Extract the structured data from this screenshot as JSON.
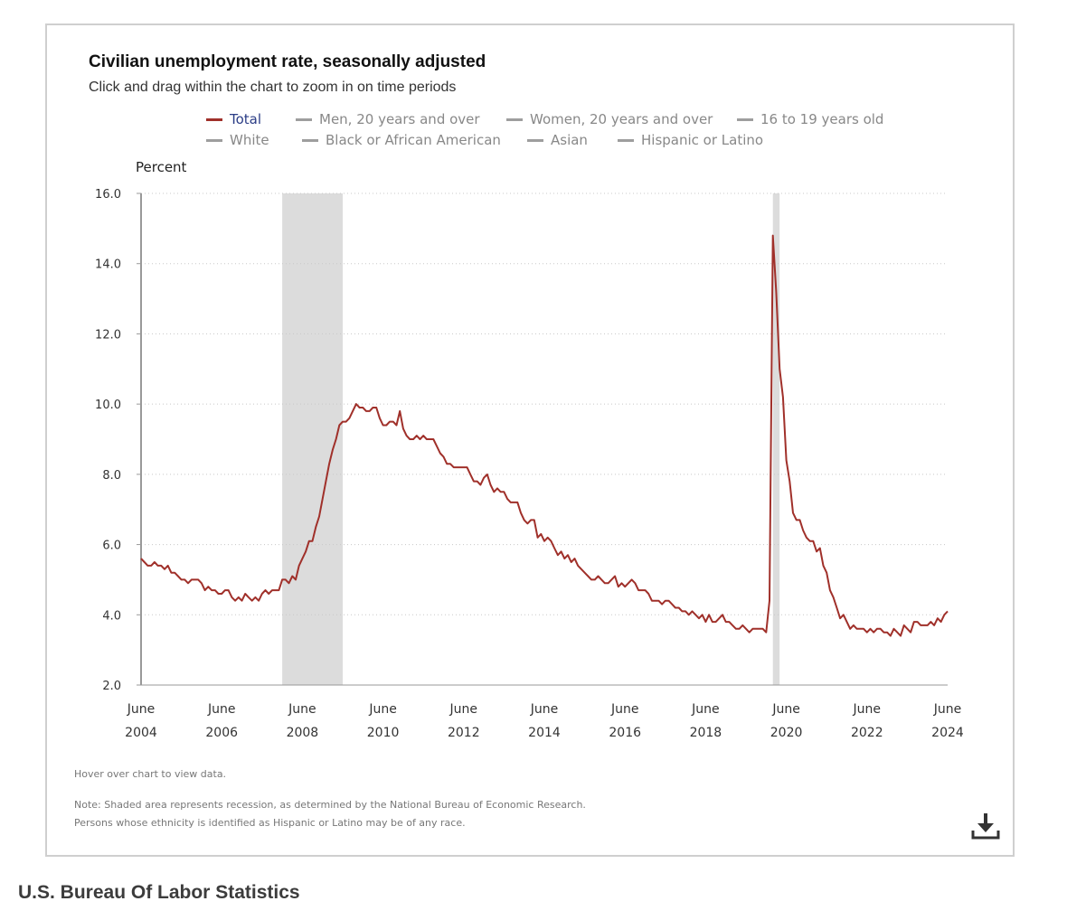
{
  "chart": {
    "title": "Civilian unemployment rate, seasonally adjusted",
    "subtitle": "Click and drag within the chart to zoom in on time periods",
    "legend": [
      {
        "label": "Total",
        "active": true,
        "color": "#a0302a"
      },
      {
        "label": "Men, 20 years and over",
        "active": false,
        "color": "#9e9e9e"
      },
      {
        "label": "Women, 20 years and over",
        "active": false,
        "color": "#9e9e9e"
      },
      {
        "label": "16 to 19 years old",
        "active": false,
        "color": "#9e9e9e"
      },
      {
        "label": "White",
        "active": false,
        "color": "#9e9e9e"
      },
      {
        "label": "Black or African American",
        "active": false,
        "color": "#9e9e9e"
      },
      {
        "label": "Asian",
        "active": false,
        "color": "#9e9e9e"
      },
      {
        "label": "Hispanic or Latino",
        "active": false,
        "color": "#9e9e9e"
      }
    ],
    "hover_note": "Hover over chart to view data.",
    "note_line1": "Note: Shaded area represents recession, as determined by the National Bureau of Economic Research.",
    "note_line2": "Persons whose ethnicity is identified as Hispanic or Latino may be of any race.",
    "download_icon": "download-icon"
  },
  "source": "U.S. Bureau Of Labor Statistics",
  "chart_data": {
    "type": "line",
    "title": "Civilian unemployment rate, seasonally adjusted",
    "ylabel": "Percent",
    "xlabel": "",
    "ylim": [
      2.0,
      16.0
    ],
    "yticks": [
      "2.0",
      "4.0",
      "6.0",
      "8.0",
      "10.0",
      "12.0",
      "14.0",
      "16.0"
    ],
    "xticks": [
      {
        "month": "June",
        "year": "2004"
      },
      {
        "month": "June",
        "year": "2006"
      },
      {
        "month": "June",
        "year": "2008"
      },
      {
        "month": "June",
        "year": "2010"
      },
      {
        "month": "June",
        "year": "2012"
      },
      {
        "month": "June",
        "year": "2014"
      },
      {
        "month": "June",
        "year": "2016"
      },
      {
        "month": "June",
        "year": "2018"
      },
      {
        "month": "June",
        "year": "2020"
      },
      {
        "month": "June",
        "year": "2022"
      },
      {
        "month": "June",
        "year": "2024"
      }
    ],
    "grid": "horizontal dotted",
    "line_color": "#a0302a",
    "recession_color": "#dcdcdc",
    "recessions": [
      {
        "start": "2007-12",
        "end": "2009-06"
      },
      {
        "start": "2020-02",
        "end": "2020-04"
      }
    ],
    "series": [
      {
        "name": "Total",
        "start": "2004-06",
        "frequency": "monthly",
        "values": [
          5.6,
          5.5,
          5.4,
          5.4,
          5.5,
          5.4,
          5.4,
          5.3,
          5.4,
          5.2,
          5.2,
          5.1,
          5.0,
          5.0,
          4.9,
          5.0,
          5.0,
          5.0,
          4.9,
          4.7,
          4.8,
          4.7,
          4.7,
          4.6,
          4.6,
          4.7,
          4.7,
          4.5,
          4.4,
          4.5,
          4.4,
          4.6,
          4.5,
          4.4,
          4.5,
          4.4,
          4.6,
          4.7,
          4.6,
          4.7,
          4.7,
          4.7,
          5.0,
          5.0,
          4.9,
          5.1,
          5.0,
          5.4,
          5.6,
          5.8,
          6.1,
          6.1,
          6.5,
          6.8,
          7.3,
          7.8,
          8.3,
          8.7,
          9.0,
          9.4,
          9.5,
          9.5,
          9.6,
          9.8,
          10.0,
          9.9,
          9.9,
          9.8,
          9.8,
          9.9,
          9.9,
          9.6,
          9.4,
          9.4,
          9.5,
          9.5,
          9.4,
          9.8,
          9.3,
          9.1,
          9.0,
          9.0,
          9.1,
          9.0,
          9.1,
          9.0,
          9.0,
          9.0,
          8.8,
          8.6,
          8.5,
          8.3,
          8.3,
          8.2,
          8.2,
          8.2,
          8.2,
          8.2,
          8.0,
          7.8,
          7.8,
          7.7,
          7.9,
          8.0,
          7.7,
          7.5,
          7.6,
          7.5,
          7.5,
          7.3,
          7.2,
          7.2,
          7.2,
          6.9,
          6.7,
          6.6,
          6.7,
          6.7,
          6.2,
          6.3,
          6.1,
          6.2,
          6.1,
          5.9,
          5.7,
          5.8,
          5.6,
          5.7,
          5.5,
          5.6,
          5.4,
          5.3,
          5.2,
          5.1,
          5.0,
          5.0,
          5.1,
          5.0,
          4.9,
          4.9,
          5.0,
          5.1,
          4.8,
          4.9,
          4.8,
          4.9,
          5.0,
          4.9,
          4.7,
          4.7,
          4.7,
          4.6,
          4.4,
          4.4,
          4.4,
          4.3,
          4.4,
          4.4,
          4.3,
          4.2,
          4.2,
          4.1,
          4.1,
          4.0,
          4.1,
          4.0,
          3.9,
          4.0,
          3.8,
          4.0,
          3.8,
          3.8,
          3.9,
          4.0,
          3.8,
          3.8,
          3.7,
          3.6,
          3.6,
          3.7,
          3.6,
          3.5,
          3.6,
          3.6,
          3.6,
          3.6,
          3.5,
          4.4,
          14.8,
          13.2,
          11.0,
          10.2,
          8.4,
          7.8,
          6.9,
          6.7,
          6.7,
          6.4,
          6.2,
          6.1,
          6.1,
          5.8,
          5.9,
          5.4,
          5.2,
          4.7,
          4.5,
          4.2,
          3.9,
          4.0,
          3.8,
          3.6,
          3.7,
          3.6,
          3.6,
          3.6,
          3.5,
          3.6,
          3.5,
          3.6,
          3.6,
          3.5,
          3.5,
          3.4,
          3.6,
          3.5,
          3.4,
          3.7,
          3.6,
          3.5,
          3.8,
          3.8,
          3.7,
          3.7,
          3.7,
          3.8,
          3.7,
          3.9,
          3.8,
          4.0,
          4.1
        ]
      }
    ]
  }
}
